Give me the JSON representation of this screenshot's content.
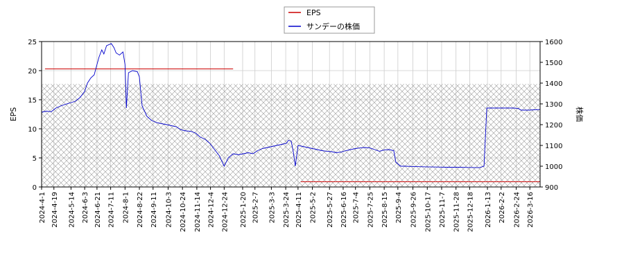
{
  "chart_data": {
    "type": "line",
    "legend": {
      "placement": "top-center",
      "entries": [
        "EPS",
        "サンデーの株価"
      ]
    },
    "x_tick_labels": [
      "2024-4-1",
      "2024-4-19",
      "2024-5-14",
      "2024-6-3",
      "2024-6-21",
      "2024-7-11",
      "2024-8-1",
      "2024-8-22",
      "2024-9-11",
      "2024-10-3",
      "2024-10-24",
      "2024-11-14",
      "2024-12-4",
      "2024-12-24",
      "2025-1-20",
      "2025-2-7",
      "2025-3-3",
      "2025-3-24",
      "2025-4-11",
      "2025-5-2",
      "2025-5-27",
      "2025-6-16",
      "2025-7-4",
      "2025-7-25",
      "2025-8-15",
      "2025-9-4",
      "2025-9-26",
      "2025-10-17",
      "2025-11-7",
      "2025-11-28",
      "2025-12-18",
      "2026-1-13",
      "2026-2-2",
      "2026-2-24",
      "2026-3-16"
    ],
    "x_range": [
      "2024-4-1",
      "2026-3-31"
    ],
    "left_axis": {
      "label": "EPS",
      "range": [
        0,
        25
      ],
      "ticks": [
        0,
        5,
        10,
        15,
        20,
        25
      ]
    },
    "right_axis": {
      "label": "株価",
      "range": [
        900,
        1600
      ],
      "ticks": [
        900,
        1000,
        1100,
        1200,
        1300,
        1400,
        1500,
        1600
      ]
    },
    "grid": true,
    "hatched_region": {
      "y_from": 0,
      "y_to": 17.7
    },
    "series": [
      {
        "name": "EPS",
        "axis": "left",
        "color": "#cc0000",
        "segments": [
          [
            [
              "2024-4-6",
              20.3
            ],
            [
              "2025-1-6",
              20.3
            ]
          ],
          [
            [
              "2025-4-15",
              0.9
            ],
            [
              "2026-3-31",
              0.9
            ]
          ]
        ]
      },
      {
        "name": "サンデーの株価",
        "axis": "right",
        "color": "#0000cc",
        "points": [
          [
            "2024-4-1",
            1260
          ],
          [
            "2024-4-8",
            1265
          ],
          [
            "2024-4-15",
            1262
          ],
          [
            "2024-4-22",
            1280
          ],
          [
            "2024-4-29",
            1290
          ],
          [
            "2024-5-6",
            1298
          ],
          [
            "2024-5-13",
            1305
          ],
          [
            "2024-5-20",
            1312
          ],
          [
            "2024-5-27",
            1330
          ],
          [
            "2024-6-3",
            1360
          ],
          [
            "2024-6-7",
            1400
          ],
          [
            "2024-6-12",
            1425
          ],
          [
            "2024-6-17",
            1440
          ],
          [
            "2024-6-21",
            1490
          ],
          [
            "2024-6-24",
            1525
          ],
          [
            "2024-6-28",
            1560
          ],
          [
            "2024-7-1",
            1540
          ],
          [
            "2024-7-5",
            1580
          ],
          [
            "2024-7-12",
            1590
          ],
          [
            "2024-7-16",
            1570
          ],
          [
            "2024-7-19",
            1545
          ],
          [
            "2024-7-24",
            1535
          ],
          [
            "2024-7-29",
            1550
          ],
          [
            "2024-8-1",
            1490
          ],
          [
            "2024-8-3",
            1280
          ],
          [
            "2024-8-6",
            1450
          ],
          [
            "2024-8-12",
            1460
          ],
          [
            "2024-8-19",
            1455
          ],
          [
            "2024-8-22",
            1430
          ],
          [
            "2024-8-26",
            1290
          ],
          [
            "2024-9-2",
            1240
          ],
          [
            "2024-9-9",
            1220
          ],
          [
            "2024-9-16",
            1210
          ],
          [
            "2024-9-23",
            1205
          ],
          [
            "2024-10-1",
            1200
          ],
          [
            "2024-10-8",
            1195
          ],
          [
            "2024-10-15",
            1190
          ],
          [
            "2024-10-22",
            1175
          ],
          [
            "2024-10-29",
            1170
          ],
          [
            "2024-11-5",
            1168
          ],
          [
            "2024-11-12",
            1160
          ],
          [
            "2024-11-19",
            1140
          ],
          [
            "2024-11-26",
            1130
          ],
          [
            "2024-12-3",
            1110
          ],
          [
            "2024-12-10",
            1080
          ],
          [
            "2024-12-17",
            1050
          ],
          [
            "2024-12-24",
            1000
          ],
          [
            "2024-12-30",
            1040
          ],
          [
            "2025-1-6",
            1060
          ],
          [
            "2025-1-14",
            1055
          ],
          [
            "2025-1-21",
            1060
          ],
          [
            "2025-1-28",
            1065
          ],
          [
            "2025-2-4",
            1060
          ],
          [
            "2025-2-11",
            1075
          ],
          [
            "2025-2-18",
            1085
          ],
          [
            "2025-2-25",
            1090
          ],
          [
            "2025-3-4",
            1095
          ],
          [
            "2025-3-11",
            1100
          ],
          [
            "2025-3-18",
            1105
          ],
          [
            "2025-3-25",
            1110
          ],
          [
            "2025-3-28",
            1125
          ],
          [
            "2025-4-1",
            1120
          ],
          [
            "2025-4-4",
            1070
          ],
          [
            "2025-4-7",
            1000
          ],
          [
            "2025-4-11",
            1100
          ],
          [
            "2025-4-18",
            1095
          ],
          [
            "2025-4-25",
            1090
          ],
          [
            "2025-5-2",
            1085
          ],
          [
            "2025-5-9",
            1080
          ],
          [
            "2025-5-16",
            1075
          ],
          [
            "2025-5-23",
            1072
          ],
          [
            "2025-5-30",
            1070
          ],
          [
            "2025-6-6",
            1065
          ],
          [
            "2025-6-13",
            1068
          ],
          [
            "2025-6-20",
            1075
          ],
          [
            "2025-6-27",
            1080
          ],
          [
            "2025-7-4",
            1085
          ],
          [
            "2025-7-11",
            1088
          ],
          [
            "2025-7-18",
            1090
          ],
          [
            "2025-7-25",
            1088
          ],
          [
            "2025-8-1",
            1080
          ],
          [
            "2025-8-8",
            1072
          ],
          [
            "2025-8-15",
            1078
          ],
          [
            "2025-8-22",
            1080
          ],
          [
            "2025-8-29",
            1075
          ],
          [
            "2025-9-1",
            1020
          ],
          [
            "2025-9-8",
            1000
          ],
          [
            "2025-9-15",
            1000
          ],
          [
            "2025-9-22",
            999
          ],
          [
            "2025-10-1",
            998
          ],
          [
            "2025-10-15",
            997
          ],
          [
            "2025-11-1",
            996
          ],
          [
            "2025-11-15",
            995
          ],
          [
            "2025-12-1",
            995
          ],
          [
            "2025-12-15",
            994
          ],
          [
            "2026-1-1",
            993
          ],
          [
            "2026-1-8",
            1000
          ],
          [
            "2026-1-12",
            1280
          ],
          [
            "2026-1-20",
            1280
          ],
          [
            "2026-2-1",
            1280
          ],
          [
            "2026-2-10",
            1280
          ],
          [
            "2026-2-20",
            1280
          ],
          [
            "2026-2-27",
            1278
          ],
          [
            "2026-3-3",
            1270
          ],
          [
            "2026-3-15",
            1270
          ],
          [
            "2026-3-31",
            1273
          ]
        ]
      }
    ]
  }
}
